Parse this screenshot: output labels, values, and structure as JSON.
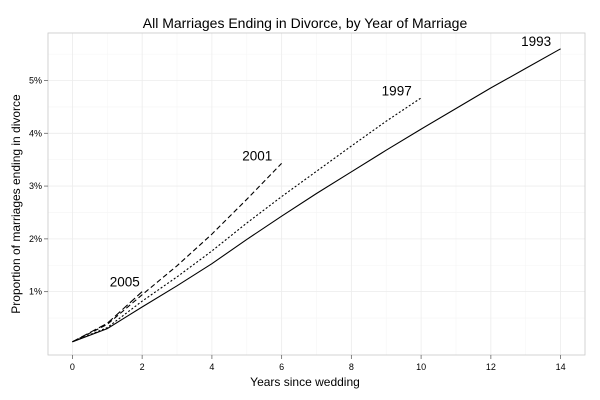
{
  "chart_data": {
    "type": "line",
    "title": "All Marriages Ending in Divorce, by Year of Marriage",
    "xlabel": "Years since wedding",
    "ylabel": "Proportion of marriages ending in divorce",
    "xlim": [
      -0.7,
      14.7
    ],
    "ylim": [
      -0.2,
      5.9
    ],
    "x_ticks": [
      {
        "value": 0,
        "label": "0"
      },
      {
        "value": 2,
        "label": "2"
      },
      {
        "value": 4,
        "label": "4"
      },
      {
        "value": 6,
        "label": "6"
      },
      {
        "value": 8,
        "label": "8"
      },
      {
        "value": 10,
        "label": "10"
      },
      {
        "value": 12,
        "label": "12"
      },
      {
        "value": 14,
        "label": "14"
      }
    ],
    "y_ticks": [
      {
        "value": 1,
        "label": "1%"
      },
      {
        "value": 2,
        "label": "2%"
      },
      {
        "value": 3,
        "label": "3%"
      },
      {
        "value": 4,
        "label": "4%"
      },
      {
        "value": 5,
        "label": "5%"
      }
    ],
    "grid": true,
    "legend": "none (direct labels)",
    "series": [
      {
        "name": "1993",
        "line_style": "solid",
        "x": [
          0,
          1,
          2,
          3,
          4,
          5,
          6,
          7,
          8,
          9,
          10,
          11,
          12,
          13,
          14
        ],
        "y": [
          0.05,
          0.3,
          0.71,
          1.11,
          1.53,
          1.99,
          2.43,
          2.86,
          3.27,
          3.68,
          4.08,
          4.47,
          4.86,
          5.23,
          5.6
        ]
      },
      {
        "name": "1997",
        "line_style": "dotted",
        "x": [
          0,
          1,
          2,
          3,
          4,
          5,
          6,
          7,
          8,
          9,
          10
        ],
        "y": [
          0.05,
          0.32,
          0.82,
          1.28,
          1.77,
          2.3,
          2.8,
          3.28,
          3.76,
          4.23,
          4.67
        ]
      },
      {
        "name": "2001",
        "line_style": "dashed",
        "x": [
          0,
          1,
          2,
          3,
          4,
          5,
          6
        ],
        "y": [
          0.05,
          0.38,
          0.94,
          1.49,
          2.09,
          2.75,
          3.43
        ]
      },
      {
        "name": "2005",
        "line_style": "long-dashed",
        "x": [
          0,
          1,
          2
        ],
        "y": [
          0.05,
          0.4,
          1.0
        ]
      }
    ],
    "series_labels": [
      {
        "series": "1993",
        "x": 13.3,
        "y": 5.65
      },
      {
        "series": "1997",
        "x": 9.3,
        "y": 4.72
      },
      {
        "series": "2001",
        "x": 5.3,
        "y": 3.48
      },
      {
        "series": "2005",
        "x": 1.5,
        "y": 1.1
      }
    ]
  }
}
